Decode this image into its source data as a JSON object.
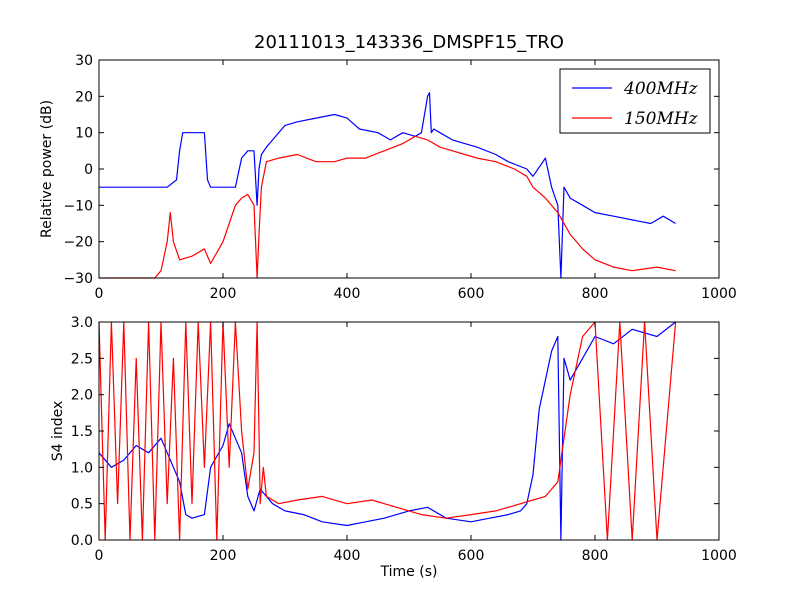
{
  "chart_data": [
    {
      "type": "line",
      "title": "20111013_143336_DMSPF15_TRO",
      "xlabel": "",
      "ylabel": "Relative power (dB)",
      "xlim": [
        0,
        1000
      ],
      "ylim": [
        -30,
        30
      ],
      "xticks": [
        "0",
        "200",
        "400",
        "600",
        "800",
        "1000"
      ],
      "yticks": [
        "−30",
        "−20",
        "−10",
        "0",
        "10",
        "20",
        "30"
      ],
      "legend": {
        "placement": "top-right"
      },
      "series": [
        {
          "name": "400MHz",
          "color": "#0000ff",
          "x": [
            0,
            30,
            60,
            90,
            110,
            125,
            130,
            135,
            150,
            170,
            175,
            180,
            200,
            220,
            230,
            240,
            250,
            255,
            258,
            262,
            270,
            280,
            300,
            320,
            350,
            380,
            400,
            420,
            450,
            470,
            490,
            510,
            520,
            530,
            533,
            536,
            540,
            550,
            570,
            590,
            610,
            640,
            660,
            690,
            700,
            720,
            730,
            740,
            745,
            750,
            760,
            780,
            800,
            830,
            860,
            890,
            910,
            930
          ],
          "y": [
            -5,
            -5,
            -5,
            -5,
            -5,
            -3,
            5,
            10,
            10,
            10,
            -3,
            -5,
            -5,
            -5,
            3,
            5,
            5,
            -10,
            0,
            4,
            6,
            8,
            12,
            13,
            14,
            15,
            14,
            11,
            10,
            8,
            10,
            9,
            10,
            20,
            21,
            10,
            11,
            10,
            8,
            7,
            6,
            4,
            2,
            0,
            -2,
            3,
            -5,
            -10,
            -30,
            -5,
            -8,
            -10,
            -12,
            -13,
            -14,
            -15,
            -13,
            -15
          ]
        },
        {
          "name": "150MHz",
          "color": "#ff0000",
          "x": [
            0,
            30,
            60,
            90,
            100,
            110,
            115,
            120,
            130,
            150,
            170,
            180,
            200,
            210,
            220,
            230,
            240,
            250,
            255,
            258,
            262,
            270,
            290,
            320,
            350,
            380,
            400,
            430,
            460,
            490,
            510,
            530,
            550,
            570,
            590,
            610,
            640,
            670,
            690,
            700,
            720,
            740,
            760,
            780,
            800,
            830,
            860,
            900,
            930
          ],
          "y": [
            -30,
            -30,
            -30,
            -30,
            -28,
            -20,
            -12,
            -20,
            -25,
            -24,
            -22,
            -26,
            -20,
            -15,
            -10,
            -8,
            -7,
            -10,
            -30,
            -18,
            -5,
            2,
            3,
            4,
            2,
            2,
            3,
            3,
            5,
            7,
            9,
            8,
            6,
            5,
            4,
            3,
            2,
            0,
            -2,
            -5,
            -8,
            -12,
            -18,
            -22,
            -25,
            -27,
            -28,
            -27,
            -28
          ]
        }
      ]
    },
    {
      "type": "line",
      "title": "",
      "xlabel": "Time (s)",
      "ylabel": "S4 index",
      "xlim": [
        0,
        1000
      ],
      "ylim": [
        0,
        3
      ],
      "xticks": [
        "0",
        "200",
        "400",
        "600",
        "800",
        "1000"
      ],
      "yticks": [
        "0.0",
        "0.5",
        "1.0",
        "1.5",
        "2.0",
        "2.5",
        "3.0"
      ],
      "series": [
        {
          "name": "400MHz",
          "color": "#0000ff",
          "x": [
            0,
            20,
            40,
            60,
            80,
            100,
            120,
            130,
            140,
            150,
            170,
            180,
            200,
            210,
            220,
            230,
            240,
            250,
            260,
            280,
            300,
            330,
            360,
            400,
            430,
            460,
            500,
            530,
            560,
            600,
            630,
            660,
            680,
            690,
            700,
            710,
            720,
            730,
            740,
            745,
            750,
            760,
            780,
            800,
            830,
            860,
            900,
            930
          ],
          "y": [
            1.2,
            1.0,
            1.1,
            1.3,
            1.2,
            1.4,
            1.0,
            0.8,
            0.35,
            0.3,
            0.35,
            1.0,
            1.3,
            1.6,
            1.4,
            1.2,
            0.6,
            0.4,
            0.7,
            0.5,
            0.4,
            0.35,
            0.25,
            0.2,
            0.25,
            0.3,
            0.4,
            0.45,
            0.3,
            0.25,
            0.3,
            0.35,
            0.4,
            0.5,
            0.9,
            1.8,
            2.2,
            2.6,
            2.8,
            0.0,
            2.5,
            2.2,
            2.5,
            2.8,
            2.7,
            2.9,
            2.8,
            3.0
          ]
        },
        {
          "name": "150MHz",
          "color": "#ff0000",
          "x": [
            0,
            10,
            20,
            30,
            40,
            50,
            60,
            70,
            80,
            90,
            100,
            110,
            120,
            130,
            140,
            150,
            160,
            170,
            180,
            190,
            200,
            210,
            220,
            230,
            240,
            250,
            255,
            260,
            265,
            270,
            290,
            320,
            360,
            400,
            440,
            480,
            520,
            560,
            600,
            640,
            680,
            700,
            720,
            740,
            760,
            780,
            800,
            820,
            840,
            860,
            880,
            900,
            930
          ],
          "y": [
            3.0,
            0.0,
            3.0,
            0.5,
            3.0,
            0.0,
            2.5,
            0.0,
            3.0,
            0.0,
            3.0,
            0.5,
            2.5,
            0.0,
            3.0,
            0.5,
            3.0,
            1.0,
            3.0,
            0.0,
            3.0,
            1.0,
            3.0,
            1.5,
            0.7,
            1.2,
            3.0,
            0.5,
            1.0,
            0.6,
            0.5,
            0.55,
            0.6,
            0.5,
            0.55,
            0.45,
            0.35,
            0.3,
            0.35,
            0.4,
            0.5,
            0.55,
            0.6,
            0.8,
            2.0,
            2.8,
            3.0,
            0.0,
            3.0,
            0.0,
            3.0,
            0.0,
            3.0
          ]
        }
      ]
    }
  ]
}
